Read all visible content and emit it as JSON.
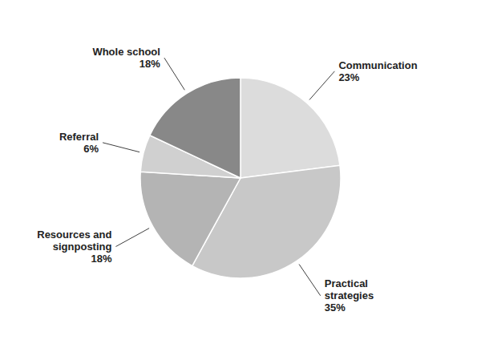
{
  "chart_data": {
    "type": "pie",
    "categories": [
      "Communication",
      "Practical\nstrategies",
      "Resources and\nsignposting",
      "Referral",
      "Whole school"
    ],
    "values": [
      23,
      35,
      18,
      6,
      18
    ],
    "value_labels": [
      "23%",
      "35%",
      "18%",
      "6%",
      "18%"
    ],
    "data_labels": true,
    "colors": [
      "#dcdcdc",
      "#c8c8c8",
      "#b4b4b4",
      "#d0d0d0",
      "#888888"
    ]
  }
}
